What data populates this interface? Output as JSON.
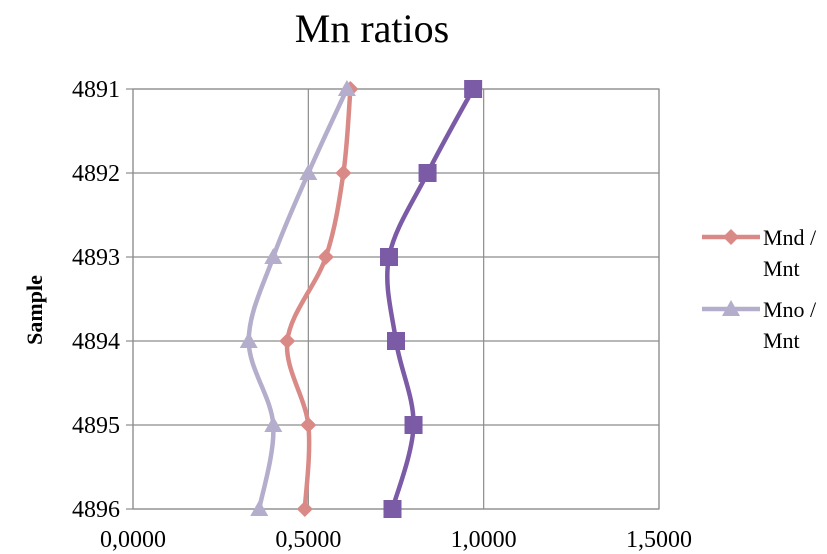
{
  "chart_data": {
    "type": "line",
    "title": "Mn ratios",
    "xlabel": "",
    "ylabel": "Sample",
    "xlim": [
      0,
      1.5
    ],
    "x_ticks": [
      0,
      0.5,
      1.0,
      1.5
    ],
    "x_tick_labels": [
      "0,0000",
      "0,5000",
      "1,0000",
      "1,5000"
    ],
    "categories": [
      "4891",
      "4892",
      "4893",
      "4894",
      "4895",
      "4896"
    ],
    "y_order": "top-to-bottom",
    "grid": true,
    "legend_position": "right",
    "series": [
      {
        "name": "",
        "color": "#7B5AA6",
        "marker": "square",
        "values": [
          0.97,
          0.84,
          0.73,
          0.75,
          0.8,
          0.74
        ]
      },
      {
        "name": "Mnd / Mnt",
        "legend_lines": [
          "Mnd /",
          "Mnt"
        ],
        "color": "#DA8A86",
        "marker": "diamond",
        "values": [
          0.62,
          0.6,
          0.55,
          0.44,
          0.5,
          0.49
        ]
      },
      {
        "name": "Mno / Mnt",
        "legend_lines": [
          "Mno /",
          "Mnt"
        ],
        "color": "#B4ADCC",
        "marker": "triangle",
        "values": [
          0.61,
          0.5,
          0.4,
          0.33,
          0.4,
          0.36
        ]
      }
    ]
  }
}
